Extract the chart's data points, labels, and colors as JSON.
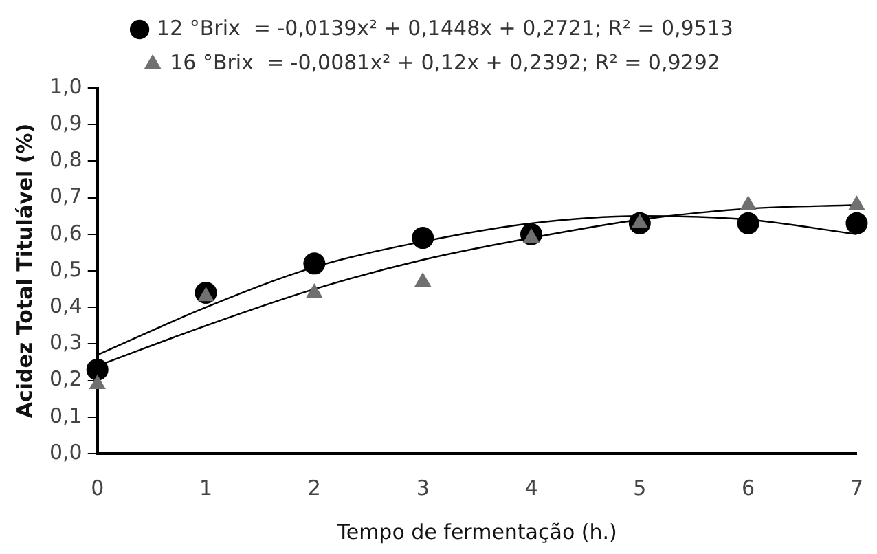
{
  "chart_data": {
    "type": "scatter",
    "xlabel": "Tempo de fermentação (h.)",
    "ylabel": "Acidez Total Titulável (%)",
    "xlim": [
      0,
      7
    ],
    "xticks": [
      0,
      1,
      2,
      3,
      4,
      5,
      6,
      7
    ],
    "ylim": [
      0,
      1
    ],
    "yticks": [
      {
        "value": 0,
        "label": "0,0"
      },
      {
        "value": 0.1,
        "label": "0,1"
      },
      {
        "value": 0.2,
        "label": "0,2"
      },
      {
        "value": 0.3,
        "label": "0,3"
      },
      {
        "value": 0.4,
        "label": "0,4"
      },
      {
        "value": 0.5,
        "label": "0,5"
      },
      {
        "value": 0.6,
        "label": "0,6"
      },
      {
        "value": 0.7,
        "label": "0,7"
      },
      {
        "value": 0.8,
        "label": "0,8"
      },
      {
        "value": 0.9,
        "label": "0,9"
      },
      {
        "value": 1,
        "label": "1,0"
      }
    ],
    "grid": false,
    "legend": "top",
    "series": [
      {
        "name": "12 °Brix  = -0,0139x² + 0,1448x + 0,2721; R² = 0,9513",
        "color": "#000000",
        "marker": "circle",
        "x": [
          0,
          1,
          2,
          3,
          4,
          5,
          6,
          7
        ],
        "values": [
          0.23,
          0.44,
          0.52,
          0.59,
          0.6,
          0.63,
          0.63,
          0.63
        ]
      },
      {
        "name": "16 °Brix  = -0,0081x² + 0,12x + 0,2392; R² = 0,9292",
        "color": "#707070",
        "marker": "triangle",
        "x": [
          0,
          1,
          2,
          3,
          4,
          5,
          6,
          7
        ],
        "values": [
          0.19,
          0.43,
          0.44,
          0.47,
          0.59,
          0.63,
          0.68,
          0.68
        ]
      },
      {
        "type": "line",
        "color": "#000000",
        "marker": "none",
        "x": [
          0,
          1,
          2,
          3,
          4,
          5,
          6,
          7
        ],
        "values": [
          0.27,
          0.4,
          0.51,
          0.58,
          0.63,
          0.65,
          0.64,
          0.6
        ]
      },
      {
        "type": "line",
        "color": "#000000",
        "marker": "none",
        "x": [
          0,
          1,
          2,
          3,
          4,
          5,
          6,
          7
        ],
        "values": [
          0.24,
          0.35,
          0.45,
          0.53,
          0.59,
          0.64,
          0.67,
          0.68
        ]
      }
    ]
  }
}
